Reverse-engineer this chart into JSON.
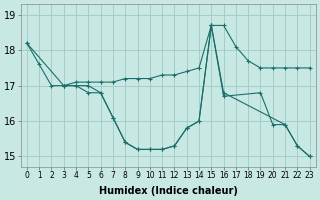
{
  "background_color": "#c8e8e4",
  "grid_color": "#a0c8c4",
  "line_color": "#1a6e6a",
  "xlabel": "Humidex (Indice chaleur)",
  "xlim": [
    -0.5,
    23.5
  ],
  "ylim": [
    14.7,
    19.3
  ],
  "yticks": [
    15,
    16,
    17,
    18,
    19
  ],
  "xticks": [
    0,
    1,
    2,
    3,
    4,
    5,
    6,
    7,
    8,
    9,
    10,
    11,
    12,
    13,
    14,
    15,
    16,
    17,
    18,
    19,
    20,
    21,
    22,
    23
  ],
  "lines": [
    {
      "x": [
        0,
        1,
        2,
        3,
        4,
        5,
        6,
        7,
        8,
        9,
        10,
        11,
        12,
        13,
        14,
        15,
        16,
        19,
        20,
        21,
        22,
        23
      ],
      "y": [
        18.2,
        17.6,
        17.0,
        17.0,
        17.0,
        16.8,
        16.8,
        16.1,
        15.4,
        15.2,
        15.2,
        15.2,
        15.3,
        15.8,
        16.0,
        18.7,
        16.7,
        16.8,
        15.9,
        15.9,
        15.3,
        15.0
      ],
      "style": "-",
      "marker": "+"
    },
    {
      "x": [
        3,
        4,
        5,
        6,
        7,
        8,
        9,
        10,
        11,
        12,
        13,
        14,
        15,
        16,
        17,
        18,
        19,
        20,
        21,
        22,
        23
      ],
      "y": [
        17.0,
        17.1,
        17.1,
        17.1,
        17.1,
        17.2,
        17.2,
        17.2,
        17.3,
        17.3,
        17.4,
        17.5,
        18.7,
        18.7,
        18.1,
        17.7,
        17.5,
        17.5,
        17.5,
        17.5,
        17.5
      ],
      "style": "-",
      "marker": "+"
    },
    {
      "x": [
        0,
        3,
        5,
        6,
        7,
        8,
        9,
        10,
        11,
        12,
        13,
        14,
        15,
        16,
        21,
        22,
        23
      ],
      "y": [
        18.2,
        17.0,
        17.0,
        16.8,
        16.1,
        15.4,
        15.2,
        15.2,
        15.2,
        15.3,
        15.8,
        16.0,
        18.7,
        16.8,
        15.9,
        15.3,
        15.0
      ],
      "style": "-",
      "marker": "+"
    }
  ]
}
